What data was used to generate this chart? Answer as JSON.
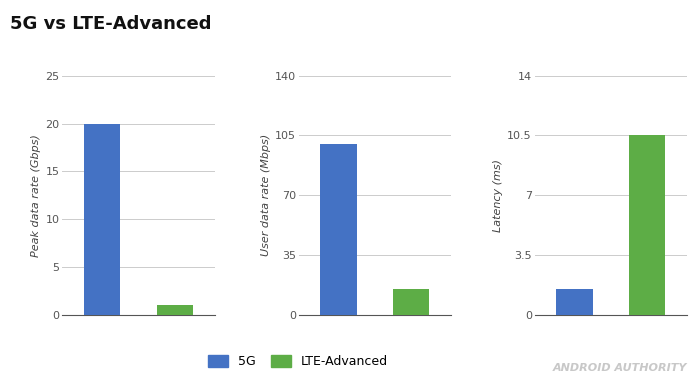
{
  "title": "5G vs LTE-Advanced",
  "title_fontsize": 13,
  "blue_color": "#4472C4",
  "green_color": "#5DAD46",
  "background_color": "#ffffff",
  "grid_color": "#cccccc",
  "charts": [
    {
      "ylabel": "Peak data rate (Gbps)",
      "values_5g": 20,
      "values_lte": 1,
      "ylim": [
        0,
        25
      ],
      "yticks": [
        0,
        5,
        10,
        15,
        20,
        25
      ],
      "yticklabels": [
        "0",
        "5",
        "10",
        "15",
        "20",
        "25"
      ]
    },
    {
      "ylabel": "User data rate (Mbps)",
      "values_5g": 100,
      "values_lte": 15,
      "ylim": [
        0,
        140
      ],
      "yticks": [
        0,
        35,
        70,
        105,
        140
      ],
      "yticklabels": [
        "0",
        "35",
        "70",
        "105",
        "140"
      ]
    },
    {
      "ylabel": "Latency (ms)",
      "values_5g": 1.5,
      "values_lte": 10.5,
      "ylim": [
        0,
        14
      ],
      "yticks": [
        0,
        3.5,
        7,
        10.5,
        14
      ],
      "yticklabels": [
        "0",
        "3.5",
        "7",
        "10.5",
        "14"
      ]
    }
  ],
  "legend_labels": [
    "5G",
    "LTE-Advanced"
  ],
  "watermark": "ANDROID AUTHORITY"
}
